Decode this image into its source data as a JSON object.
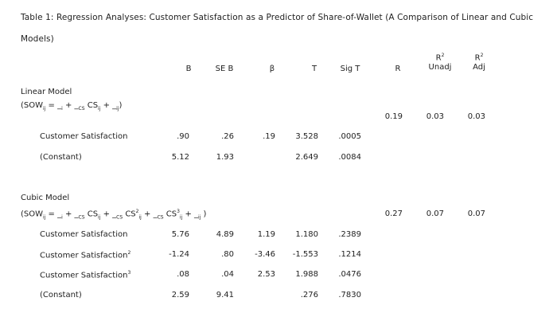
{
  "caption": {
    "line1": "Table 1: Regression Analyses: Customer Satisfaction as a Predictor of Share-of-Wallet (A Comparison of Linear and Cubic",
    "line2": "Models)"
  },
  "headers": {
    "b": "B",
    "seb": "SE B",
    "beta": "β",
    "t": "T",
    "sigt": "Sig T",
    "r": "R",
    "r2_sym": "R",
    "r2_sup": "2",
    "r2_unadj": "Unadj",
    "r2adj_sym": "R",
    "r2adj_sup": "2",
    "r2_adj": "Adj"
  },
  "linear": {
    "title": "Linear Model",
    "equation": "(SOW",
    "eq_sub1": "ij",
    "eq_rest": " = ",
    "eq_a": "_",
    "eq_a_sub": "i",
    "eq_plus1": " + ",
    "eq_b": "_",
    "eq_b_sub": "CS",
    "eq_cs": " CS",
    "eq_cs_sub": "ij",
    "eq_plus2": " + ",
    "eq_e": "_",
    "eq_e_sub": "ij",
    "eq_close": ")",
    "r": "0.19",
    "r2_unadj": "0.03",
    "r2_adj": "0.03",
    "rows": [
      {
        "label": "Customer Satisfaction",
        "sup": "",
        "b": ".90",
        "seb": ".26",
        "beta": ".19",
        "t": "3.528",
        "sig": ".0005"
      },
      {
        "label": "(Constant)",
        "sup": "",
        "b": "5.12",
        "seb": "1.93",
        "beta": "",
        "t": "2.649",
        "sig": ".0084"
      }
    ]
  },
  "cubic": {
    "title": "Cubic Model",
    "eq_open": "(SOW",
    "eq_sub1": "ij",
    "eq_a": " = _",
    "eq_a_sub": "i",
    "eq_p1": " + _",
    "eq_b1_sub": "CS",
    "eq_cs1": " CS",
    "eq_cs1_sub": "ij",
    "eq_p2": " + _",
    "eq_b2_sub": "CS",
    "eq_cs2": " CS",
    "eq_cs2_sup": "2",
    "eq_cs2_sub": "ij",
    "eq_p3": " + _",
    "eq_b3_sub": "CS",
    "eq_cs3": " CS",
    "eq_cs3_sup": "3",
    "eq_cs3_sub": "ij",
    "eq_p4": " + _",
    "eq_e_sub": "ij",
    "eq_close": " )",
    "r": "0.27",
    "r2_unadj": "0.07",
    "r2_adj": "0.07",
    "rows": [
      {
        "label": "Customer Satisfaction",
        "sup": "",
        "b": "5.76",
        "seb": "4.89",
        "beta": "1.19",
        "t": "1.180",
        "sig": ".2389"
      },
      {
        "label": "Customer Satisfaction",
        "sup": "2",
        "b": "-1.24",
        "seb": ".80",
        "beta": "-3.46",
        "t": "-1.553",
        "sig": ".1214"
      },
      {
        "label": "Customer Satisfaction",
        "sup": "3",
        "b": ".08",
        "seb": ".04",
        "beta": "2.53",
        "t": "1.988",
        "sig": ".0476"
      },
      {
        "label": "(Constant)",
        "sup": "",
        "b": "2.59",
        "seb": "9.41",
        "beta": "",
        "t": ".276",
        "sig": ".7830"
      }
    ]
  }
}
